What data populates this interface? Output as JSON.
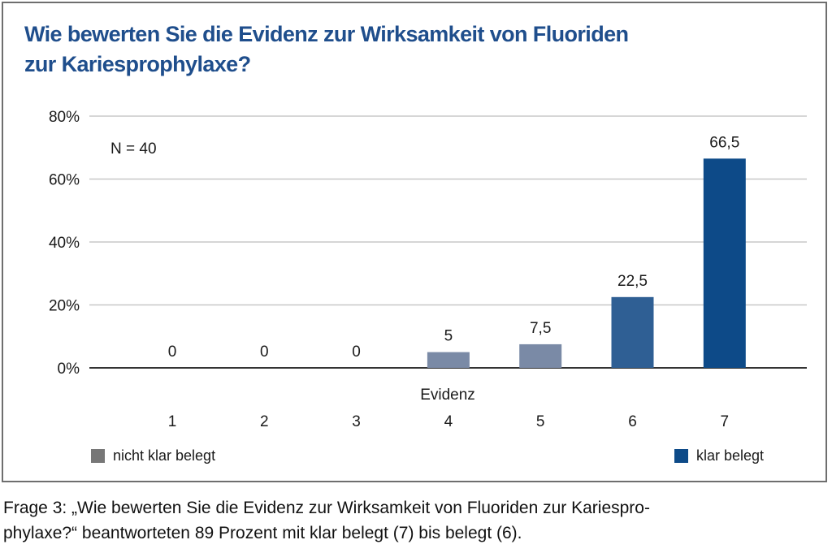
{
  "title": {
    "line1": "Wie bewerten Sie die Evidenz zur Wirksamkeit von Fluoriden",
    "line2": "zur Kariesprophylaxe?"
  },
  "annotation": "N = 40",
  "chart_data": {
    "type": "bar",
    "categories": [
      "1",
      "2",
      "3",
      "4",
      "5",
      "6",
      "7"
    ],
    "values": [
      0,
      0,
      0,
      5,
      7.5,
      22.5,
      66.5
    ],
    "value_labels": [
      "0",
      "0",
      "0",
      "5",
      "7,5",
      "22,5",
      "66,5"
    ],
    "xlabel": "Evidenz",
    "ylabel": "",
    "ylim": [
      0,
      80
    ],
    "yticks": [
      0,
      20,
      40,
      60,
      80
    ],
    "ytick_labels": [
      "0%",
      "20%",
      "40%",
      "60%",
      "80%"
    ],
    "grid": true,
    "bar_colors": [
      "#7a8aa6",
      "#7a8aa6",
      "#7a8aa6",
      "#7a8aa6",
      "#7a8aa6",
      "#2f5f94",
      "#0d4a88"
    ],
    "legend": [
      {
        "label": "nicht klar belegt",
        "color": "#777777"
      },
      {
        "label": "klar belegt",
        "color": "#0d4a88"
      }
    ]
  },
  "caption": {
    "line1": "Frage 3: „Wie bewerten Sie die Evidenz zur Wirksamkeit von Fluoriden zur Kariespro-",
    "line2": "phylaxe?“ beantworteten 89 Prozent mit klar belegt (7) bis belegt (6)."
  }
}
